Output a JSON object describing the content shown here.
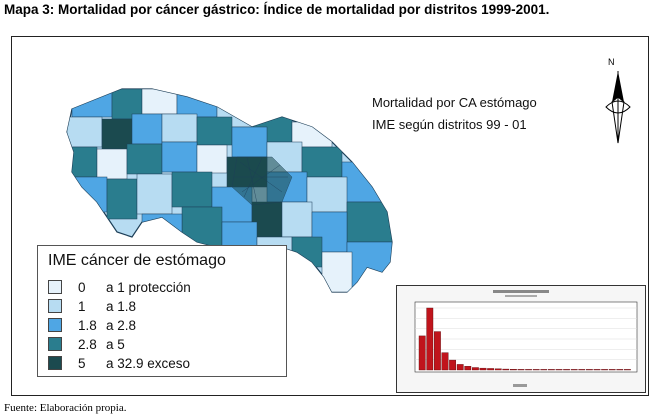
{
  "heading": "Mapa 3: Mortalidad por cáncer gástrico: Índice de mortalidad por distritos 1999-2001.",
  "map": {
    "title_line1": "Mortalidad por CA estómago",
    "title_line2": "IME según distritos 99 - 01",
    "north_label": "N"
  },
  "legend": {
    "title": "IME cáncer de estómago",
    "items": [
      {
        "from": "0",
        "to": "a 1 protección",
        "color": "#e6f2fb"
      },
      {
        "from": "1",
        "to": "a 1.8",
        "color": "#b7dcf2"
      },
      {
        "from": "1.8",
        "to": "a 2.8",
        "color": "#4fa6e4"
      },
      {
        "from": "2.8",
        "to": "a 5",
        "color": "#2a7d8e"
      },
      {
        "from": "5",
        "to": "a 32.9 exceso",
        "color": "#1b4a4f"
      }
    ]
  },
  "inset_histogram": {
    "bar_color": "#c0141c",
    "values": [
      0.55,
      1.0,
      0.62,
      0.28,
      0.16,
      0.09,
      0.06,
      0.04,
      0.03,
      0.025,
      0.02,
      0.015,
      0.012,
      0.01,
      0.008,
      0.007,
      0.006,
      0.005,
      0.004,
      0.004,
      0.003,
      0.003,
      0.002,
      0.002,
      0.002,
      0.002,
      0.001,
      0.001
    ]
  },
  "source": "Fuente: Elaboración propia."
}
